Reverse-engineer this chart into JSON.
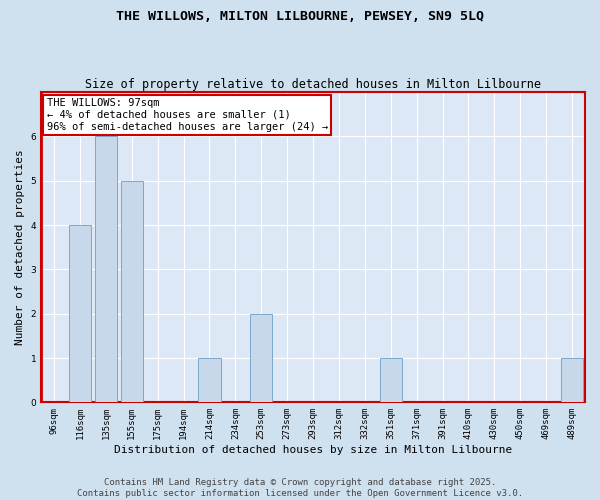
{
  "title": "THE WILLOWS, MILTON LILBOURNE, PEWSEY, SN9 5LQ",
  "subtitle": "Size of property relative to detached houses in Milton Lilbourne",
  "xlabel": "Distribution of detached houses by size in Milton Lilbourne",
  "ylabel": "Number of detached properties",
  "categories": [
    "96sqm",
    "116sqm",
    "135sqm",
    "155sqm",
    "175sqm",
    "194sqm",
    "214sqm",
    "234sqm",
    "253sqm",
    "273sqm",
    "293sqm",
    "312sqm",
    "332sqm",
    "351sqm",
    "371sqm",
    "391sqm",
    "410sqm",
    "430sqm",
    "450sqm",
    "469sqm",
    "489sqm"
  ],
  "values": [
    0,
    4,
    6,
    5,
    0,
    0,
    1,
    0,
    2,
    0,
    0,
    0,
    0,
    1,
    0,
    0,
    0,
    0,
    0,
    0,
    1
  ],
  "bar_color": "#c8d8eb",
  "bar_edge_color": "#7aa8cc",
  "annotation_box_text": "THE WILLOWS: 97sqm\n← 4% of detached houses are smaller (1)\n96% of semi-detached houses are larger (24) →",
  "annotation_box_color": "#ffffff",
  "annotation_box_edge_color": "#cc0000",
  "vline_color": "#cc0000",
  "ylim": [
    0,
    7
  ],
  "yticks": [
    0,
    1,
    2,
    3,
    4,
    5,
    6
  ],
  "background_color": "#cfe0ef",
  "plot_bg_color": "#dce8f5",
  "grid_color": "#ffffff",
  "footer_text": "Contains HM Land Registry data © Crown copyright and database right 2025.\nContains public sector information licensed under the Open Government Licence v3.0.",
  "title_fontsize": 9.5,
  "subtitle_fontsize": 8.5,
  "xlabel_fontsize": 8,
  "ylabel_fontsize": 8,
  "tick_fontsize": 6.5,
  "annotation_fontsize": 7.5,
  "footer_fontsize": 6.5
}
